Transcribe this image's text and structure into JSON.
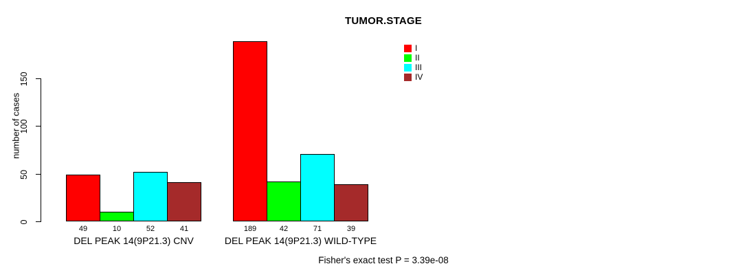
{
  "chart_data": {
    "type": "bar",
    "title": "TUMOR.STAGE",
    "ylabel": "number of cases",
    "xlabel": "",
    "yticks": [
      0,
      50,
      100,
      150
    ],
    "ylim": [
      0,
      200
    ],
    "grid": false,
    "legend_position": "top-right",
    "categories": [
      "DEL PEAK 14(9P21.3) CNV",
      "DEL PEAK 14(9P21.3) WILD-TYPE"
    ],
    "series": [
      {
        "name": "I",
        "color": "#FF0000"
      },
      {
        "name": "II",
        "color": "#00FF00"
      },
      {
        "name": "III",
        "color": "#00FFFF"
      },
      {
        "name": "IV",
        "color": "#A52A2A"
      }
    ],
    "groups": [
      {
        "label": "DEL PEAK 14(9P21.3) CNV",
        "values": [
          49,
          10,
          52,
          41
        ]
      },
      {
        "label": "DEL PEAK 14(9P21.3) WILD-TYPE",
        "values": [
          189,
          42,
          71,
          39
        ]
      }
    ],
    "annotation": "Fisher's exact test P = 3.39e-08"
  }
}
